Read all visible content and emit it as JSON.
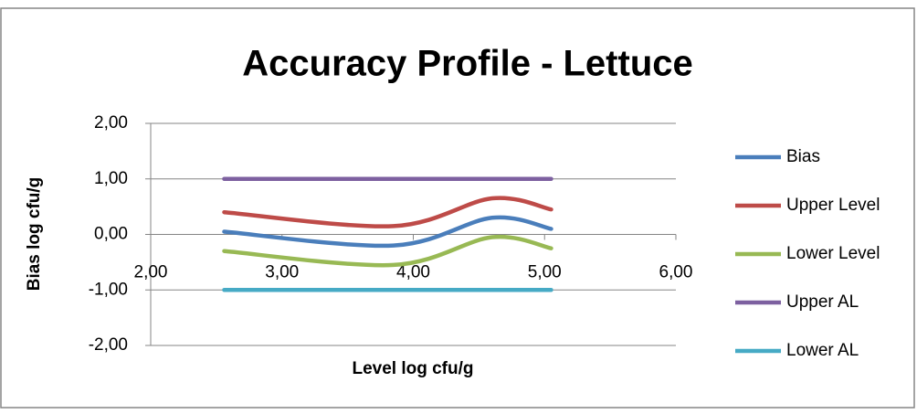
{
  "chart_data": {
    "type": "line",
    "title": "Accuracy Profile - Lettuce",
    "x_label": "Level log cfu/g",
    "y_label": "Bias log cfu/g",
    "x": [
      2.56,
      3.85,
      4.6,
      5.05
    ],
    "series": [
      {
        "name": "Bias",
        "color": "#4a7ebb",
        "values": [
          0.05,
          -0.2,
          0.3,
          0.1
        ]
      },
      {
        "name": "Upper Level",
        "color": "#be4b48",
        "values": [
          0.4,
          0.15,
          0.65,
          0.45
        ]
      },
      {
        "name": "Lower Level",
        "color": "#98b954",
        "values": [
          -0.3,
          -0.55,
          -0.05,
          -0.25
        ]
      },
      {
        "name": "Upper AL",
        "color": "#7d60a0",
        "values": [
          1,
          1,
          1,
          1
        ]
      },
      {
        "name": "Lower AL",
        "color": "#46aac5",
        "values": [
          -1,
          -1,
          -1,
          -1
        ]
      }
    ],
    "xlim": [
      2,
      6
    ],
    "xticks": [
      {
        "value": 2,
        "label": "2,00"
      },
      {
        "value": 3,
        "label": "3,00"
      },
      {
        "value": 4,
        "label": "4,00"
      },
      {
        "value": 5,
        "label": "5,00"
      },
      {
        "value": 6,
        "label": "6,00"
      }
    ],
    "ylim": [
      -2,
      2
    ],
    "yticks": [
      {
        "value": -2,
        "label": "-2,00"
      },
      {
        "value": -1,
        "label": "-1,00"
      },
      {
        "value": 0,
        "label": "0,00"
      },
      {
        "value": 1,
        "label": "1,00"
      },
      {
        "value": 2,
        "label": "2,00"
      }
    ],
    "grid": true,
    "smooth": true,
    "legend": "right"
  }
}
